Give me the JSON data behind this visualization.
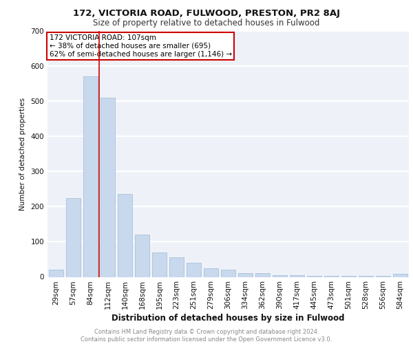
{
  "title1": "172, VICTORIA ROAD, FULWOOD, PRESTON, PR2 8AJ",
  "title2": "Size of property relative to detached houses in Fulwood",
  "xlabel": "Distribution of detached houses by size in Fulwood",
  "ylabel": "Number of detached properties",
  "categories": [
    "29sqm",
    "57sqm",
    "84sqm",
    "112sqm",
    "140sqm",
    "168sqm",
    "195sqm",
    "223sqm",
    "251sqm",
    "279sqm",
    "306sqm",
    "334sqm",
    "362sqm",
    "390sqm",
    "417sqm",
    "445sqm",
    "473sqm",
    "501sqm",
    "528sqm",
    "556sqm",
    "584sqm"
  ],
  "values": [
    20,
    225,
    570,
    510,
    235,
    120,
    70,
    55,
    40,
    25,
    20,
    10,
    10,
    5,
    5,
    3,
    2,
    2,
    2,
    2,
    8
  ],
  "bar_color": "#c8d9ee",
  "bar_edge_color": "#a8bfd8",
  "vline_color": "#cc0000",
  "vline_index": 2.5,
  "annotation_text": "172 VICTORIA ROAD: 107sqm\n← 38% of detached houses are smaller (695)\n62% of semi-detached houses are larger (1,146) →",
  "annotation_box_color": "#ffffff",
  "annotation_box_edge": "#cc0000",
  "ylim": [
    0,
    700
  ],
  "yticks": [
    0,
    100,
    200,
    300,
    400,
    500,
    600,
    700
  ],
  "footer_text": "Contains HM Land Registry data © Crown copyright and database right 2024.\nContains public sector information licensed under the Open Government Licence v3.0.",
  "bg_color": "#eef2f8",
  "grid_color": "#ffffff",
  "title1_fontsize": 9.5,
  "title2_fontsize": 8.5,
  "xlabel_fontsize": 8.5,
  "ylabel_fontsize": 7.5,
  "tick_fontsize": 7.5,
  "annotation_fontsize": 7.5,
  "footer_fontsize": 6
}
